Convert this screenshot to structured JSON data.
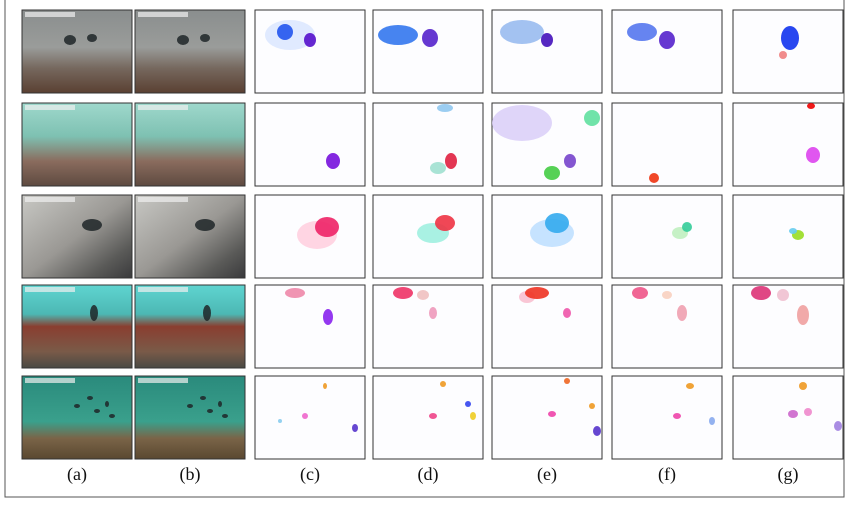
{
  "columns": [
    "(a)",
    "(b)",
    "(c)",
    "(d)",
    "(e)",
    "(f)",
    "(g)"
  ]
}
